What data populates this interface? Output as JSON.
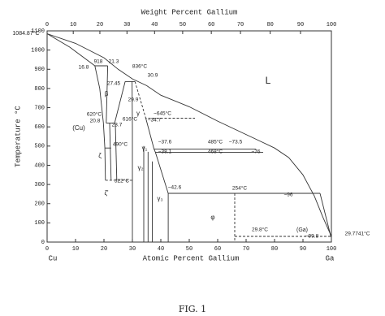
{
  "chart_data": {
    "type": "line",
    "title": "Weight Percent Gallium",
    "x_label": "Atomic Percent Gallium",
    "y_label": "Temperature °C",
    "left_end_label": "Cu",
    "right_end_label": "Ga",
    "caption": "FIG. 1",
    "xlim": [
      0,
      100
    ],
    "ylim": [
      0,
      1100
    ],
    "xticks": [
      0,
      10,
      20,
      30,
      40,
      50,
      60,
      70,
      80,
      90,
      100
    ],
    "yticks": [
      0,
      100,
      200,
      300,
      400,
      500,
      600,
      700,
      800,
      900,
      1000,
      1100
    ],
    "x2ticks": [
      0,
      10,
      20,
      30,
      40,
      50,
      60,
      70,
      80,
      90,
      100
    ],
    "color": "#333333",
    "series": [
      {
        "x": [
          0,
          10,
          20,
          25,
          30,
          35,
          40,
          50,
          60,
          70,
          75,
          80,
          85,
          90,
          94,
          97,
          100
        ],
        "values": [
          1085,
          1035,
          960,
          900,
          850,
          815,
          765,
          705,
          630,
          560,
          525,
          490,
          440,
          350,
          240,
          130,
          30
        ],
        "dashed": false
      },
      {
        "x": [
          0,
          8,
          16.8
        ],
        "values": [
          1085,
          1015,
          918
        ],
        "dashed": false
      },
      {
        "x": [
          16.8,
          18.5,
          19.8,
          20.3,
          20.5
        ],
        "values": [
          918,
          800,
          620,
          490,
          322
        ],
        "dashed": false
      },
      {
        "x": [
          16.8,
          21.3
        ],
        "values": [
          918,
          918
        ],
        "dashed": false
      },
      {
        "x": [
          21.3,
          20.8
        ],
        "values": [
          918,
          620
        ],
        "dashed": false
      },
      {
        "x": [
          27.45,
          23.7
        ],
        "values": [
          836,
          616
        ],
        "dashed": false
      },
      {
        "x": [
          27.45,
          30.9
        ],
        "values": [
          836,
          836
        ],
        "dashed": false
      },
      {
        "x": [
          29.9,
          30,
          30
        ],
        "values": [
          836,
          600,
          0
        ],
        "dashed": false
      },
      {
        "x": [
          20.8,
          23.7
        ],
        "values": [
          620,
          620
        ],
        "dashed": false
      },
      {
        "x": [
          22,
          22.5
        ],
        "values": [
          620,
          322
        ],
        "dashed": false
      },
      {
        "x": [
          24,
          24.5
        ],
        "values": [
          616,
          322
        ],
        "dashed": false
      },
      {
        "x": [
          20.3,
          22.5
        ],
        "values": [
          490,
          490
        ],
        "dashed": false
      },
      {
        "x": [
          20.5,
          30
        ],
        "values": [
          322,
          322
        ],
        "dashed": true
      },
      {
        "x": [
          30.9,
          34.7,
          52
        ],
        "values": [
          836,
          645,
          645
        ],
        "dashed": true
      },
      {
        "x": [
          34.7,
          37.6,
          38.1,
          42.6
        ],
        "values": [
          645,
          485,
          468,
          254
        ],
        "dashed": false
      },
      {
        "x": [
          37.6,
          73.5
        ],
        "values": [
          485,
          485
        ],
        "dashed": false
      },
      {
        "x": [
          38.1,
          76
        ],
        "values": [
          468,
          468
        ],
        "dashed": false
      },
      {
        "x": [
          42.6,
          96
        ],
        "values": [
          254,
          254
        ],
        "dashed": false
      },
      {
        "x": [
          34,
          34
        ],
        "values": [
          500,
          0
        ],
        "dashed": false
      },
      {
        "x": [
          35.5,
          35.5
        ],
        "values": [
          470,
          0
        ],
        "dashed": false
      },
      {
        "x": [
          37,
          37
        ],
        "values": [
          420,
          0
        ],
        "dashed": false
      },
      {
        "x": [
          42.6,
          42.6
        ],
        "values": [
          254,
          0
        ],
        "dashed": false
      },
      {
        "x": [
          66,
          66
        ],
        "values": [
          254,
          0
        ],
        "dashed": true
      },
      {
        "x": [
          66,
          99.8
        ],
        "values": [
          29.8,
          29.8
        ],
        "dashed": true
      },
      {
        "x": [
          96,
          99.8,
          100
        ],
        "values": [
          254,
          29.8,
          29.77
        ],
        "dashed": false
      }
    ],
    "annotations": [
      "1084.87°C",
      "L",
      "(Cu)",
      "β",
      "γ",
      "γ₁",
      "γ₂",
      "γ₃",
      "ζ",
      "ζ'",
      "φ",
      "(Ga)",
      "29.7741°C",
      "16.8",
      "918",
      "21.3",
      "27.45",
      "836°C",
      "30.9",
      "29.9",
      "620°C",
      "20.8",
      "616°C",
      "23.7",
      "490°C",
      "~645°C",
      "~34.7",
      "~37.6",
      "485°C",
      "~73.5",
      "~38.1",
      "468°C",
      "~76",
      "322°C",
      "~42.6",
      "254°C",
      "~96",
      "29.8°C",
      "~99.8"
    ]
  }
}
